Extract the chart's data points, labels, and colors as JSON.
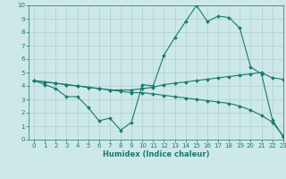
{
  "title": "",
  "xlabel": "Humidex (Indice chaleur)",
  "background_color": "#cde8e8",
  "grid_color": "#aecfcf",
  "line_color": "#1a7a6e",
  "xlim": [
    -0.5,
    23
  ],
  "ylim": [
    0,
    10
  ],
  "xticks": [
    0,
    1,
    2,
    3,
    4,
    5,
    6,
    7,
    8,
    9,
    10,
    11,
    12,
    13,
    14,
    15,
    16,
    17,
    18,
    19,
    20,
    21,
    22,
    23
  ],
  "yticks": [
    0,
    1,
    2,
    3,
    4,
    5,
    6,
    7,
    8,
    9,
    10
  ],
  "line1_x": [
    0,
    1,
    2,
    3,
    4,
    5,
    6,
    7,
    8,
    9,
    10,
    11,
    12,
    13,
    14,
    15,
    16,
    17,
    18,
    19,
    20,
    21,
    22,
    23
  ],
  "line1_y": [
    4.4,
    4.1,
    3.8,
    3.2,
    3.2,
    2.4,
    1.4,
    1.6,
    0.7,
    1.3,
    4.1,
    4.0,
    6.3,
    7.6,
    8.8,
    10.0,
    8.8,
    9.2,
    9.1,
    8.3,
    5.4,
    4.9,
    1.5,
    0.2
  ],
  "line2_x": [
    0,
    1,
    2,
    3,
    4,
    5,
    6,
    7,
    8,
    9,
    10,
    11,
    12,
    13,
    14,
    15,
    16,
    17,
    18,
    19,
    20,
    21,
    22,
    23
  ],
  "line2_y": [
    4.4,
    4.3,
    4.2,
    4.1,
    4.0,
    3.9,
    3.8,
    3.7,
    3.7,
    3.7,
    3.8,
    3.9,
    4.1,
    4.2,
    4.3,
    4.4,
    4.5,
    4.6,
    4.7,
    4.8,
    4.9,
    5.0,
    4.6,
    4.5
  ],
  "line3_x": [
    0,
    1,
    2,
    3,
    4,
    5,
    6,
    7,
    8,
    9,
    10,
    11,
    12,
    13,
    14,
    15,
    16,
    17,
    18,
    19,
    20,
    21,
    22,
    23
  ],
  "line3_y": [
    4.4,
    4.3,
    4.2,
    4.1,
    4.0,
    3.9,
    3.8,
    3.7,
    3.6,
    3.5,
    3.5,
    3.4,
    3.3,
    3.2,
    3.1,
    3.0,
    2.9,
    2.8,
    2.7,
    2.5,
    2.2,
    1.8,
    1.3,
    0.3
  ],
  "xlabel_fontsize": 6,
  "tick_fontsize": 5,
  "marker_size": 2,
  "linewidth": 0.8
}
